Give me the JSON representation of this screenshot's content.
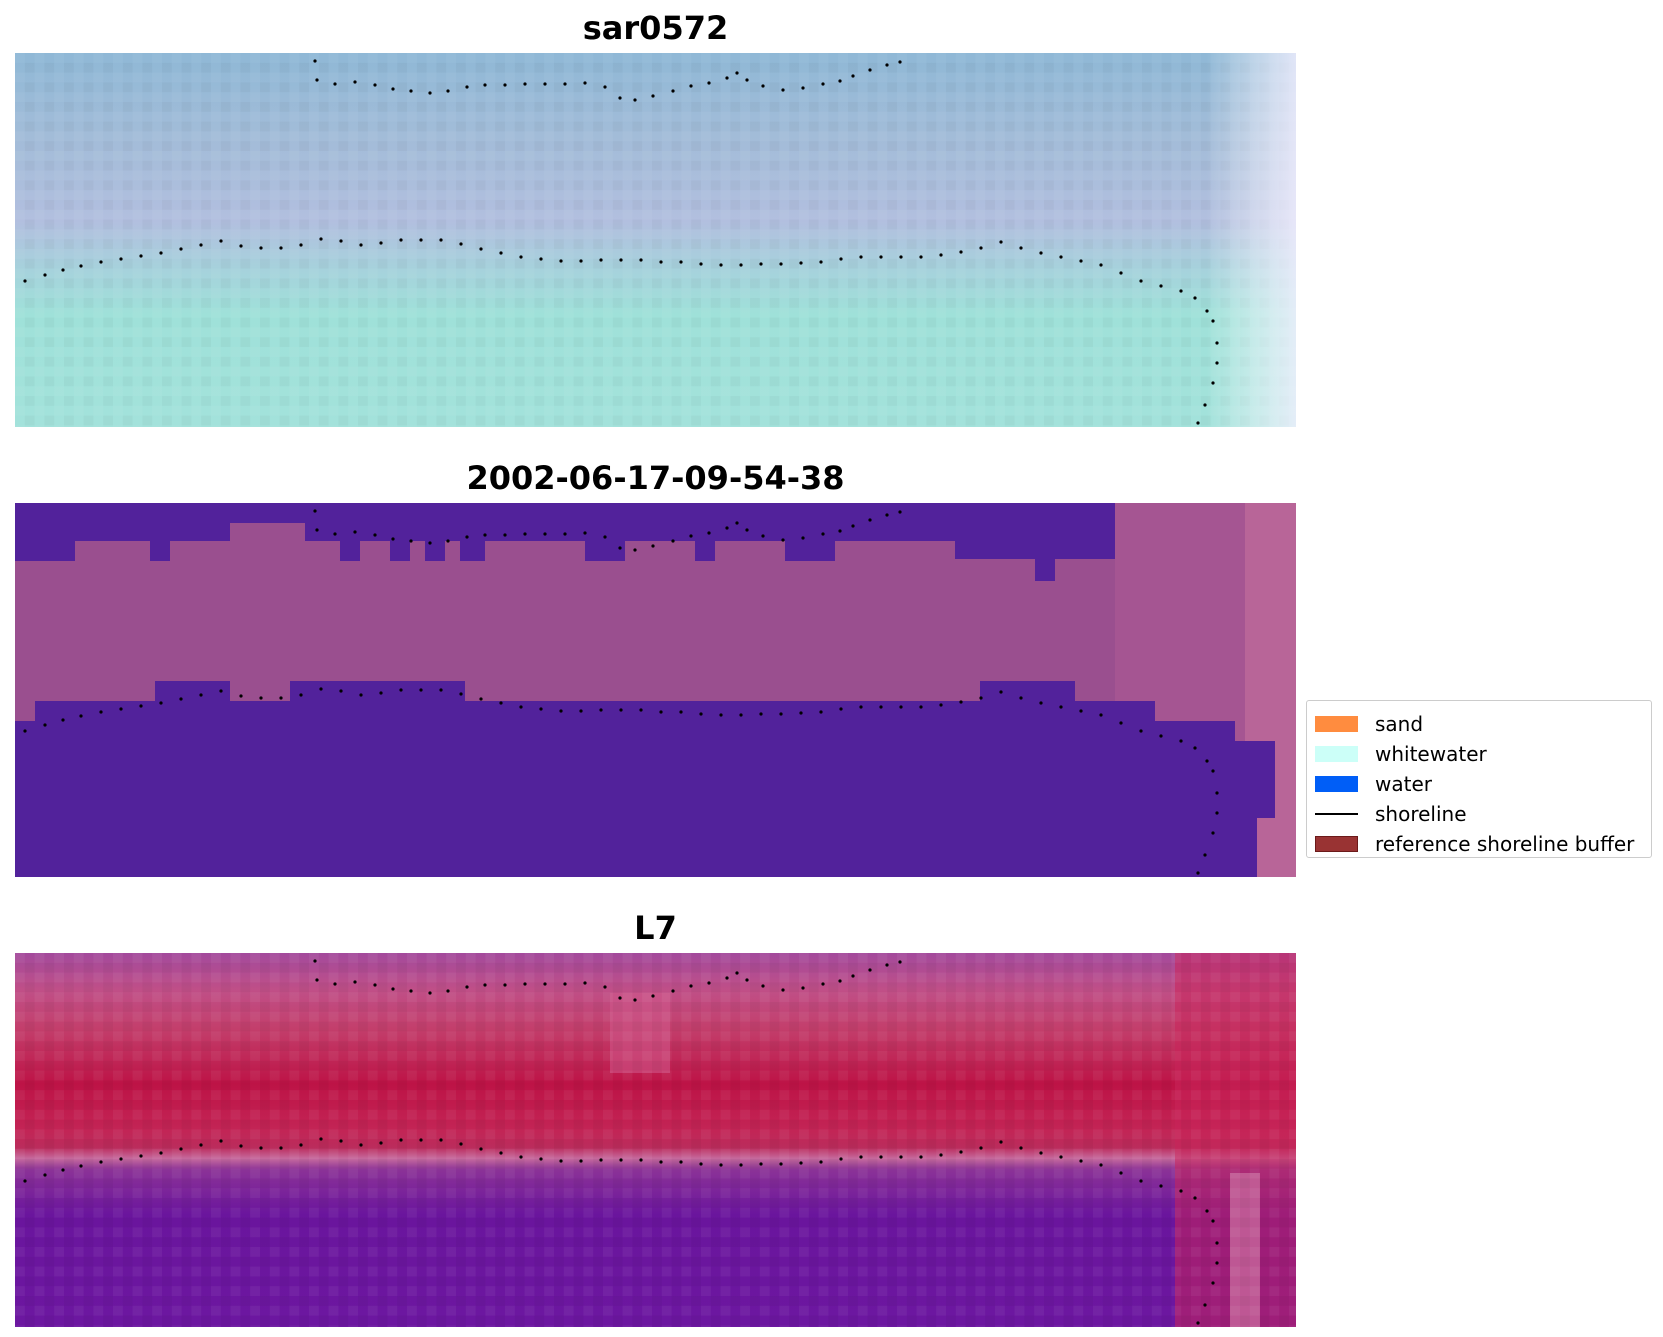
{
  "panels": [
    {
      "title": "sar0572",
      "style": "rgb"
    },
    {
      "title": "2002-06-17-09-54-38",
      "style": "classified"
    },
    {
      "title": "L7",
      "style": "falsecolor"
    }
  ],
  "legend": {
    "items": [
      {
        "label": "sand",
        "kind": "patch",
        "color": "#ff8c3f"
      },
      {
        "label": "whitewater",
        "kind": "patch",
        "color": "#ccfff8"
      },
      {
        "label": "water",
        "kind": "patch",
        "color": "#005ef7"
      },
      {
        "label": "shoreline",
        "kind": "line",
        "color": "#000000"
      },
      {
        "label": "reference shoreline buffer",
        "kind": "patch",
        "color": "#993333",
        "edge": "#6b1a1a"
      }
    ]
  },
  "colors": {
    "classified_water": "#52229b",
    "classified_land": "#9a4f8f",
    "shoreline_dots": "#000000"
  }
}
